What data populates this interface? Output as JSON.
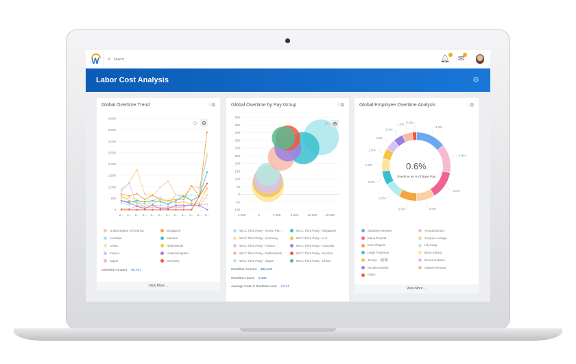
{
  "app": {
    "logo_letter": "W",
    "search_placeholder": "Search",
    "search_icon": "magnifier",
    "notifications_icon": "bell",
    "inbox_icon": "inbox",
    "page_title": "Labor Cost Analysis",
    "header_icon": "gear"
  },
  "colors": {
    "brand_blue": "#1570d0",
    "badge": "#f5a623"
  },
  "panels": {
    "trend": {
      "title": "Global Overtime Trend",
      "stat_label": "Overtime Amount",
      "stat_value": "56,757",
      "view_more": "View More ..."
    },
    "paygroup": {
      "title": "Global Overtime by Pay Group",
      "stats": [
        {
          "label": "Overtime Amount",
          "value": "$56,602"
        },
        {
          "label": "Overtime Hours",
          "value": "2,288"
        },
        {
          "label": "Average Cost of Overtime Hour",
          "value": "24.74"
        }
      ]
    },
    "employee": {
      "title": "Global Employee Overtime Analysis",
      "center_value": "0.6%",
      "center_label": "Overtime as % of Base Pay",
      "view_more": "View More ..."
    }
  },
  "chart_data": [
    {
      "type": "line",
      "ylim": [
        0,
        4000
      ],
      "yticks": [
        "0",
        "500",
        "1,000",
        "1,500",
        "2,000",
        "2,500",
        "3,000",
        "3,500",
        "4,000"
      ],
      "categories": [
        "2...",
        "2...",
        "2...",
        "2...",
        "2...",
        "2...",
        "2...",
        "2...",
        "2...",
        "2...",
        "2...",
        "0..."
      ],
      "legend": "bottom",
      "series": [
        {
          "name": "United States of America",
          "color": "#f9cb9c",
          "values": [
            800,
            1200,
            1750,
            700,
            600,
            1000,
            1250,
            650,
            550,
            1050,
            950,
            2450
          ]
        },
        {
          "name": "Australia",
          "color": "#a8e6ef",
          "values": [
            300,
            200,
            400,
            100,
            400,
            550,
            200,
            650,
            600,
            650,
            600,
            2350
          ]
        },
        {
          "name": "China",
          "color": "#fde39a",
          "values": [
            500,
            550,
            450,
            300,
            650,
            400,
            350,
            650,
            650,
            400,
            600,
            900
          ]
        },
        {
          "name": "France",
          "color": "#d6c2f5",
          "values": [
            900,
            1150,
            200,
            150,
            200,
            200,
            150,
            150,
            150,
            200,
            200,
            250
          ]
        },
        {
          "name": "Japan",
          "color": "#f8bbaa",
          "values": [
            50,
            50,
            150,
            100,
            100,
            100,
            100,
            100,
            100,
            300,
            150,
            650
          ]
        },
        {
          "name": "Singapore",
          "color": "#f5a442",
          "values": [
            700,
            600,
            700,
            450,
            650,
            450,
            400,
            450,
            450,
            1050,
            600,
            3400
          ]
        },
        {
          "name": "Sweden",
          "color": "#3bbfcf",
          "values": [
            400,
            350,
            400,
            350,
            400,
            350,
            250,
            400,
            600,
            400,
            600,
            1650
          ]
        },
        {
          "name": "Netherlands",
          "color": "#f6c343",
          "values": [
            600,
            400,
            300,
            250,
            250,
            450,
            400,
            300,
            350,
            250,
            300,
            950
          ]
        },
        {
          "name": "United Kingdom",
          "color": "#9b7fe0",
          "values": [
            400,
            300,
            150,
            50,
            200,
            50,
            50,
            200,
            200,
            200,
            200,
            0
          ]
        },
        {
          "name": "Germany",
          "color": "#ec5a3d",
          "values": [
            0,
            0,
            0,
            0,
            0,
            0,
            0,
            0,
            0,
            0,
            600,
            1150
          ]
        }
      ]
    },
    {
      "type": "scatter",
      "xlim": [
        -4000,
        18000
      ],
      "ylim": [
        -100,
        500
      ],
      "xticks": [
        "-4,000",
        "0",
        "4,000",
        "8,000",
        "12,000",
        "16,000"
      ],
      "yticks": [
        "-100",
        "-50",
        "0",
        "50",
        "100",
        "150",
        "200",
        "250",
        "300",
        "350",
        "400",
        "450",
        "500"
      ],
      "legend": "bottom",
      "series": [
        {
          "name": "WCC Third Party - Green Pla...",
          "color": "#a8e6ef",
          "x": 14000,
          "y": 370,
          "size": 10
        },
        {
          "name": "WCC Third Party - Germany",
          "color": "#fde39a",
          "x": 2000,
          "y": 55,
          "size": 9
        },
        {
          "name": "WCC Third Party - France",
          "color": "#d6c2f5",
          "x": 2000,
          "y": 95,
          "size": 8
        },
        {
          "name": "WCC Third Party - Netherlands",
          "color": "#f8bbaa",
          "x": 5000,
          "y": 240,
          "size": 7.5
        },
        {
          "name": "WCC Third Party - Japan",
          "color": "#b5e8dc",
          "x": 2000,
          "y": 130,
          "size": 6.5
        },
        {
          "name": "WCC Third Party - Singapore",
          "color": "#3bbfcf",
          "x": 10000,
          "y": 300,
          "size": 9
        },
        {
          "name": "WCC Third Party - U.K.",
          "color": "#f6c343",
          "x": 2000,
          "y": 80,
          "size": 8.5
        },
        {
          "name": "WCC Third Party - Australia",
          "color": "#9b7fe0",
          "x": 6500,
          "y": 300,
          "size": 7.5
        },
        {
          "name": "WCC Third Party - Nordics",
          "color": "#ec5a3d",
          "x": 6500,
          "y": 365,
          "size": 7
        },
        {
          "name": "WCC Third Party - China",
          "color": "#5cb88f",
          "x": 5500,
          "y": 365,
          "size": 6.5
        }
      ]
    },
    {
      "type": "pie",
      "donut": true,
      "unit": "%",
      "slices": [
        {
          "name": "Sandrine Meunier",
          "value": 4.3,
          "label": "4.3%",
          "color": "#6aa8f0"
        },
        {
          "name": "Arnaud Breton",
          "value": 4.0,
          "label": "4.0%",
          "color": "#f7bad4"
        },
        {
          "name": "Marie Durand",
          "value": 4.0,
          "label": "4.0%",
          "color": "#f06292"
        },
        {
          "name": "Jacques Lesage",
          "value": 2.6,
          "label": "2.6%",
          "color": "#f8d0a4"
        },
        {
          "name": "Ines Chapuis",
          "value": 2.6,
          "label": "2.6%",
          "color": "#f5a442"
        },
        {
          "name": "Lily Kang",
          "value": 2.3,
          "label": "2.3%",
          "color": "#b2ebf2"
        },
        {
          "name": "Leigh Freidman",
          "value": 2.0,
          "label": "2.0%",
          "color": "#3bbfcf"
        },
        {
          "name": "Bjorn Eklund",
          "value": 1.8,
          "label": "1.8%",
          "color": "#fde39a"
        },
        {
          "name": "Jia Qin （家琴）",
          "value": 1.5,
          "label": "1.5%",
          "color": "#f6c343"
        },
        {
          "name": "Emma Hobson",
          "value": 1.5,
          "label": "1.5%",
          "color": "#d6c2f5"
        },
        {
          "name": "Nicolas Bonnet",
          "value": 1.4,
          "label": "1.4%",
          "color": "#9b7fe0"
        },
        {
          "name": "Gaston Renaud",
          "value": 1.4,
          "label": "1.4%",
          "color": "#f8bbaa"
        },
        {
          "name": "Other",
          "value": 0.6,
          "label": "0.6%",
          "color": "#ec5a3d"
        }
      ],
      "legend_order": [
        0,
        1,
        2,
        3,
        4,
        5,
        6,
        7,
        8,
        9,
        10,
        11,
        12
      ]
    }
  ]
}
